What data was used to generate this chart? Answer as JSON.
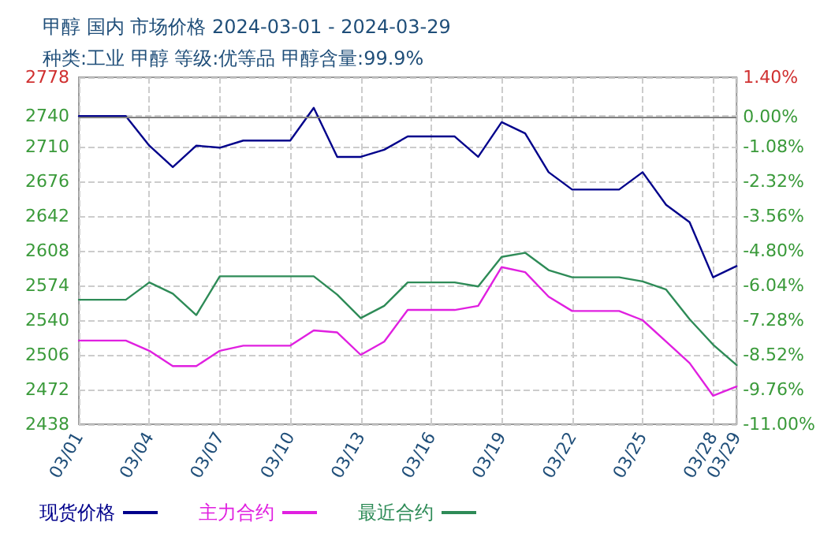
{
  "chart_data": {
    "type": "line",
    "title": "甲醇 国内 市场价格 2024-03-01 - 2024-03-29",
    "subtitle": "种类:工业 甲醇 等级:优等品 甲醇含量:99.9%",
    "categories": [
      "03/01",
      null,
      null,
      "03/04",
      null,
      null,
      "03/07",
      null,
      null,
      "03/10",
      null,
      null,
      "03/13",
      null,
      null,
      "03/16",
      null,
      null,
      "03/19",
      null,
      null,
      "03/22",
      null,
      null,
      "03/25",
      null,
      null,
      "03/28",
      "03/29"
    ],
    "series": [
      {
        "name": "现货价格",
        "color": "#00008b",
        "values": [
          2740,
          2740,
          2740,
          2711,
          2690,
          2711,
          2709,
          2716,
          2716,
          2716,
          2748,
          2700,
          2700,
          2707,
          2720,
          2720,
          2720,
          2700,
          2734,
          2723,
          2685,
          2668,
          2668,
          2668,
          2685,
          2653,
          2636,
          2582,
          2593
        ]
      },
      {
        "name": "主力合约",
        "color": "#e020e0",
        "values": [
          2520,
          2520,
          2520,
          2510,
          2495,
          2495,
          2510,
          2515,
          2515,
          2515,
          2530,
          2528,
          2506,
          2519,
          2550,
          2550,
          2550,
          2554,
          2592,
          2587,
          2563,
          2549,
          2549,
          2549,
          2540,
          2519,
          2498,
          2466,
          2475
        ]
      },
      {
        "name": "最近合约",
        "color": "#2e8b57",
        "values": [
          2560,
          2560,
          2560,
          2577,
          2566,
          2545,
          2583,
          2583,
          2583,
          2583,
          2583,
          2565,
          2542,
          2554,
          2577,
          2577,
          2577,
          2573,
          2602,
          2606,
          2589,
          2582,
          2582,
          2582,
          2578,
          2570,
          2541,
          2516,
          2496
        ]
      }
    ],
    "ylim": [
      2438,
      2778
    ],
    "yticks": [
      2438,
      2472,
      2506,
      2540,
      2574,
      2608,
      2642,
      2676,
      2710,
      2740,
      2778
    ],
    "y2lim": [
      -11,
      1.4
    ],
    "y2ticks": [
      {
        "value": -11,
        "label": "-11.00%"
      },
      {
        "value": -9.76,
        "label": "-9.76%"
      },
      {
        "value": -8.52,
        "label": "-8.52%"
      },
      {
        "value": -7.28,
        "label": "-7.28%"
      },
      {
        "value": -6.04,
        "label": "-6.04%"
      },
      {
        "value": -4.8,
        "label": "-4.80%"
      },
      {
        "value": -3.56,
        "label": "-3.56%"
      },
      {
        "value": -2.32,
        "label": "-2.32%"
      },
      {
        "value": -1.08,
        "label": "-1.08%"
      },
      {
        "value": 0,
        "label": "0.00%"
      },
      {
        "value": 1.4,
        "label": "1.40%"
      }
    ],
    "ref_lines": [
      {
        "axis": "y2",
        "value": 0,
        "label": null,
        "color": "#808080",
        "line_style": "solid"
      }
    ],
    "grid": true,
    "legend": "bottom left",
    "marker": "none",
    "line_style": "solid"
  }
}
